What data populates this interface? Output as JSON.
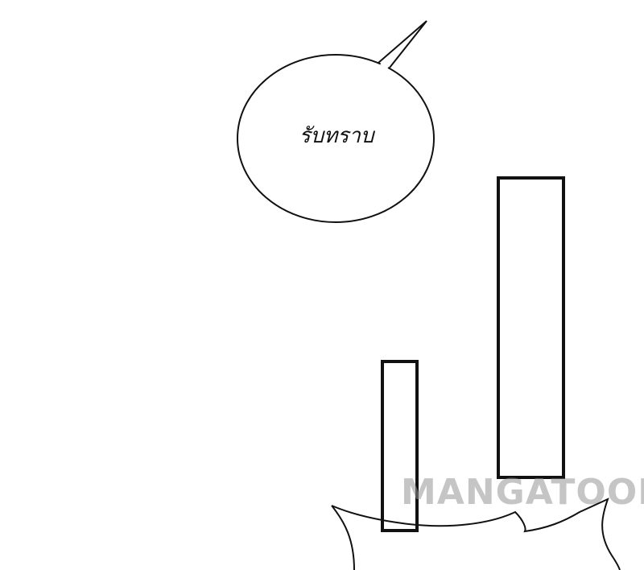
{
  "speech_bubble": {
    "text": "รับทราบ"
  },
  "watermark": {
    "text": "MANGATOON"
  },
  "colors": {
    "background": "#ffffff",
    "ink": "#111111",
    "watermark": "#969696"
  }
}
